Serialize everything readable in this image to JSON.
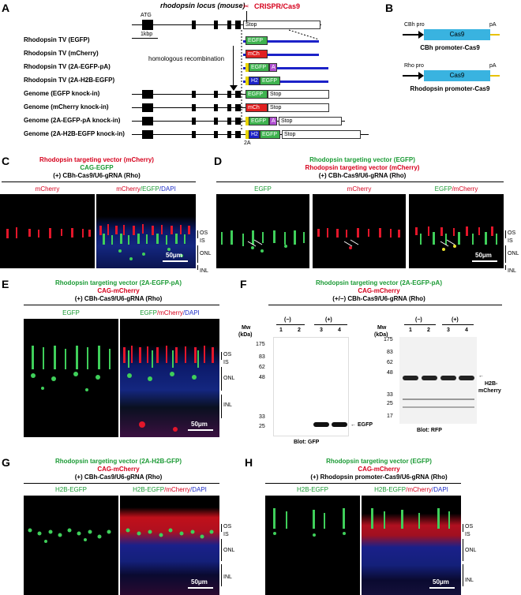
{
  "panel_letters": [
    "A",
    "B",
    "C",
    "D",
    "E",
    "F",
    "G",
    "H"
  ],
  "panelA": {
    "title": "rhodopsin locus (mouse)",
    "atg": "ATG",
    "scale": "1kbp",
    "crispr": "CRISPR/Cas9",
    "stop": "Stop",
    "hr": "homologous recombination",
    "two_a": "2A",
    "rows": [
      "Rhodopsin TV (EGFP)",
      "Rhodopsin TV (mCherry)",
      "Rhodopsin TV (2A-EGFP-pA)",
      "Rhodopsin TV (2A-H2B-EGFP)",
      "Genome (EGFP knock-in)",
      "Genome (mCherry knock-in)",
      "Genome (2A-EGFP-pA knock-in)",
      "Genome (2A-H2B-EGFP knock-in)"
    ],
    "box_labels": {
      "egfp": "EGFP",
      "mch": "mCh",
      "a": "A",
      "h2": "H2",
      "stop": "Stop"
    }
  },
  "panelB": {
    "cbh_pro": "CBh pro",
    "rho_pro": "Rho pro",
    "cas9": "Cas9",
    "pa": "pA",
    "cbh_caption": "CBh promoter-Cas9",
    "rho_caption": "Rhodopsin promoter-Cas9"
  },
  "panelC": {
    "line1": "Rhodopsin targeting vector (mCherry)",
    "line2": "CAG-EGFP",
    "line3": "(+) CBh-Cas9/U6-gRNA (Rho)",
    "img1": "mCherry",
    "img2": {
      "a": "mCherry",
      "b": "/EGFP",
      "c": "/DAPI"
    },
    "scale": "50μm",
    "layers": [
      "OS",
      "IS",
      "ONL",
      "INL"
    ]
  },
  "panelD": {
    "line1": "Rhodopsin targeting vector (EGFP)",
    "line2": "Rhodopsin targeting vector (mCherry)",
    "line3": "(+) CBh-Cas9/U6-gRNA (Rho)",
    "img1": "EGFP",
    "img2": "mCherry",
    "img3": {
      "a": "EGFP",
      "b": "/mCherry"
    },
    "scale": "50μm",
    "layers": [
      "OS",
      "IS",
      "ONL",
      "INL"
    ]
  },
  "panelE": {
    "line1": "Rhodopsin targeting vector (2A-EGFP-pA)",
    "line2": "CAG-mCherry",
    "line3": "(+) CBh-Cas9/U6-gRNA (Rho)",
    "img1": "EGFP",
    "img2": {
      "a": "EGFP",
      "b": "/mCherry",
      "c": "/DAPI"
    },
    "scale": "50μm",
    "layers": [
      "OS",
      "IS",
      "ONL",
      "INL"
    ]
  },
  "panelF": {
    "line1": "Rhodopsin targeting vector (2A-EGFP-pA)",
    "line2": "CAG-mCherry",
    "line3": "(+/−) CBh-Cas9/U6-gRNA (Rho)",
    "mw": "Mw",
    "kda": "(kDa)",
    "minus": "(−)",
    "plus": "(+)",
    "lanes": [
      "1",
      "2",
      "3",
      "4"
    ],
    "markers": [
      "175",
      "83",
      "62",
      "48",
      "33",
      "25"
    ],
    "markers_right": [
      "175",
      "83",
      "62",
      "48",
      "33",
      "25",
      "17"
    ],
    "band_left": "EGFP",
    "band_right_1": "H2B-",
    "band_right_2": "mCherry",
    "blot_left": "Blot: GFP",
    "blot_right": "Blot: RFP"
  },
  "panelG": {
    "line1": "Rhodopsin targeting vector (2A-H2B-GFP)",
    "line2": "CAG-mCherry",
    "line3": "(+) CBh-Cas9/U6-gRNA (Rho)",
    "img1": "H2B-EGFP",
    "img2": {
      "a": "H2B-EGFP",
      "b": "/mCherry",
      "c": "/DAPI"
    },
    "scale": "50μm",
    "layers": [
      "OS",
      "IS",
      "ONL",
      "INL"
    ]
  },
  "panelH": {
    "line1": "Rhodopsin targeting vector (EGFP)",
    "line2": "CAG-mCherry",
    "line3": "(+) Rhodopsin promoter-Cas9/U6-gRNA (Rho)",
    "img1": "H2B-EGFP",
    "img2": {
      "a": "H2B-EGFP",
      "b": "/mCherry",
      "c": "/DAPI"
    },
    "scale": "50μm",
    "layers": [
      "OS",
      "IS",
      "ONL",
      "INL"
    ]
  },
  "colors": {
    "egfp": "#3fb34f",
    "mcherry": "#e02020",
    "tv_blue": "#1c22c8",
    "cas9": "#39b3e0",
    "pa": "#e8c200",
    "a_box": "#b04fd0",
    "h2": "#1c22c8",
    "yellow": "#e8d400"
  }
}
